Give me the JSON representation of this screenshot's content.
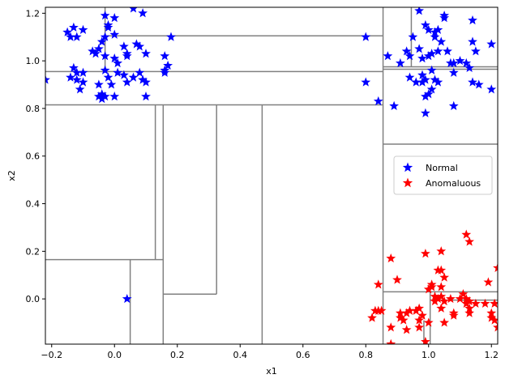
{
  "chart_data": {
    "type": "scatter",
    "title": "",
    "xlabel": "x1",
    "ylabel": "x2",
    "xlim": [
      -0.22,
      1.22
    ],
    "ylim": [
      -0.19,
      1.225
    ],
    "xticks": [
      -0.2,
      0.0,
      0.2,
      0.4,
      0.6,
      0.8,
      1.0,
      1.2
    ],
    "xtick_labels": [
      "−0.2",
      "0.0",
      "0.2",
      "0.4",
      "0.6",
      "0.8",
      "1.0",
      "1.2"
    ],
    "yticks": [
      0.0,
      0.2,
      0.4,
      0.6,
      0.8,
      1.0,
      1.2
    ],
    "ytick_labels": [
      "0.0",
      "0.2",
      "0.4",
      "0.6",
      "0.8",
      "1.0",
      "1.2"
    ],
    "grid": false,
    "legend_position": "center-right",
    "partition_color": "#808080",
    "partition_lines": {
      "vertical": [
        {
          "x": -0.03,
          "y0": 0.95,
          "y1": 1.225
        },
        {
          "x": 0.13,
          "y0": 0.165,
          "y1": 0.815
        },
        {
          "x": 0.155,
          "y0": -0.19,
          "y1": 0.815
        },
        {
          "x": 0.05,
          "y0": -0.19,
          "y1": 0.165
        },
        {
          "x": 0.325,
          "y0": 0.02,
          "y1": 0.815
        },
        {
          "x": 0.47,
          "y0": -0.19,
          "y1": 0.815
        },
        {
          "x": 0.855,
          "y0": -0.19,
          "y1": 1.225
        },
        {
          "x": 0.945,
          "y0": 0.975,
          "y1": 1.225
        },
        {
          "x": 1.005,
          "y0": -0.19,
          "y1": 0.03
        },
        {
          "x": 0.985,
          "y0": -0.19,
          "y1": -0.09
        }
      ],
      "horizontal": [
        {
          "y": 1.105,
          "x0": -0.03,
          "x1": 0.855
        },
        {
          "y": 0.955,
          "x0": -0.22,
          "x1": 0.855
        },
        {
          "y": 0.815,
          "x0": -0.22,
          "x1": 0.855
        },
        {
          "y": 0.165,
          "x0": -0.22,
          "x1": 0.155
        },
        {
          "y": 0.02,
          "x0": 0.155,
          "x1": 0.325
        },
        {
          "y": 0.975,
          "x0": 0.855,
          "x1": 1.22
        },
        {
          "y": 0.965,
          "x0": 0.855,
          "x1": 1.22
        },
        {
          "y": 0.65,
          "x0": 0.855,
          "x1": 1.22
        },
        {
          "y": 0.03,
          "x0": 0.855,
          "x1": 1.22
        },
        {
          "y": -0.005,
          "x0": 1.005,
          "x1": 1.22
        }
      ]
    },
    "series": [
      {
        "name": "Normal",
        "color": "#0000ff",
        "marker": "star",
        "points": [
          [
            -0.22,
            0.92
          ],
          [
            -0.15,
            1.12
          ],
          [
            -0.13,
            1.14
          ],
          [
            -0.12,
            1.1
          ],
          [
            -0.14,
            1.1
          ],
          [
            -0.1,
            1.13
          ],
          [
            -0.03,
            1.19
          ],
          [
            -0.02,
            1.15
          ],
          [
            -0.02,
            1.14
          ],
          [
            0.0,
            1.18
          ],
          [
            0.06,
            1.22
          ],
          [
            0.09,
            1.2
          ],
          [
            -0.03,
            1.1
          ],
          [
            0.0,
            1.11
          ],
          [
            0.07,
            1.07
          ],
          [
            0.08,
            1.06
          ],
          [
            0.1,
            1.03
          ],
          [
            0.18,
            1.1
          ],
          [
            0.03,
            1.06
          ],
          [
            0.04,
            1.03
          ],
          [
            -0.07,
            1.04
          ],
          [
            -0.05,
            1.05
          ],
          [
            -0.06,
            1.03
          ],
          [
            -0.03,
            1.02
          ],
          [
            -0.04,
            1.08
          ],
          [
            0.0,
            1.01
          ],
          [
            0.01,
            0.99
          ],
          [
            0.04,
            1.02
          ],
          [
            0.16,
            1.02
          ],
          [
            0.17,
            0.98
          ],
          [
            0.16,
            0.95
          ],
          [
            0.16,
            0.96
          ],
          [
            -0.13,
            0.97
          ],
          [
            -0.12,
            0.95
          ],
          [
            -0.14,
            0.93
          ],
          [
            -0.12,
            0.92
          ],
          [
            -0.1,
            0.95
          ],
          [
            -0.1,
            0.91
          ],
          [
            -0.11,
            0.88
          ],
          [
            -0.05,
            0.9
          ],
          [
            -0.03,
            0.96
          ],
          [
            -0.02,
            0.93
          ],
          [
            -0.01,
            0.9
          ],
          [
            0.01,
            0.95
          ],
          [
            0.03,
            0.94
          ],
          [
            0.06,
            0.93
          ],
          [
            0.08,
            0.95
          ],
          [
            0.09,
            0.92
          ],
          [
            0.1,
            0.91
          ],
          [
            0.04,
            0.91
          ],
          [
            -0.05,
            0.85
          ],
          [
            -0.04,
            0.84
          ],
          [
            -0.04,
            0.86
          ],
          [
            -0.03,
            0.85
          ],
          [
            0.0,
            0.85
          ],
          [
            0.1,
            0.85
          ],
          [
            0.04,
            0.0
          ],
          [
            0.8,
            1.1
          ],
          [
            0.8,
            0.91
          ],
          [
            0.84,
            0.83
          ],
          [
            0.87,
            1.02
          ],
          [
            0.89,
            0.81
          ],
          [
            0.91,
            0.99
          ],
          [
            0.93,
            1.04
          ],
          [
            0.94,
            1.02
          ],
          [
            0.95,
            1.1
          ],
          [
            0.97,
            1.05
          ],
          [
            0.98,
            1.01
          ],
          [
            0.98,
            0.94
          ],
          [
            0.99,
            0.92
          ],
          [
            0.94,
            0.93
          ],
          [
            0.96,
            0.91
          ],
          [
            0.98,
            0.91
          ],
          [
            0.97,
            1.21
          ],
          [
            0.99,
            1.15
          ],
          [
            1.0,
            1.13
          ],
          [
            1.02,
            1.12
          ],
          [
            1.02,
            1.1
          ],
          [
            1.03,
            1.13
          ],
          [
            1.04,
            1.08
          ],
          [
            1.05,
            1.19
          ],
          [
            1.05,
            1.18
          ],
          [
            1.06,
            1.04
          ],
          [
            1.03,
            1.04
          ],
          [
            1.01,
            1.03
          ],
          [
            1.0,
            1.02
          ],
          [
            1.01,
            0.96
          ],
          [
            1.02,
            0.92
          ],
          [
            1.03,
            0.91
          ],
          [
            1.0,
            0.86
          ],
          [
            0.99,
            0.85
          ],
          [
            1.01,
            0.88
          ],
          [
            0.99,
            0.78
          ],
          [
            1.07,
            0.99
          ],
          [
            1.08,
            0.99
          ],
          [
            1.08,
            0.95
          ],
          [
            1.1,
            1.0
          ],
          [
            1.12,
            0.99
          ],
          [
            1.13,
            0.97
          ],
          [
            1.14,
            1.17
          ],
          [
            1.14,
            1.08
          ],
          [
            1.15,
            1.04
          ],
          [
            1.14,
            0.91
          ],
          [
            1.16,
            0.9
          ],
          [
            1.2,
            1.07
          ],
          [
            1.2,
            0.88
          ],
          [
            1.08,
            0.81
          ]
        ]
      },
      {
        "name": "Anomaluous",
        "color": "#ff0000",
        "marker": "star",
        "points": [
          [
            0.84,
            0.06
          ],
          [
            0.83,
            -0.05
          ],
          [
            0.84,
            -0.05
          ],
          [
            0.82,
            -0.08
          ],
          [
            0.85,
            -0.05
          ],
          [
            0.88,
            0.17
          ],
          [
            0.9,
            0.08
          ],
          [
            0.88,
            -0.12
          ],
          [
            0.88,
            -0.19
          ],
          [
            0.91,
            -0.06
          ],
          [
            0.91,
            -0.08
          ],
          [
            0.92,
            -0.09
          ],
          [
            0.93,
            -0.06
          ],
          [
            0.94,
            -0.05
          ],
          [
            0.93,
            -0.13
          ],
          [
            0.96,
            -0.05
          ],
          [
            0.97,
            -0.04
          ],
          [
            0.97,
            -0.09
          ],
          [
            0.98,
            -0.07
          ],
          [
            0.97,
            -0.12
          ],
          [
            0.99,
            0.19
          ],
          [
            1.0,
            -0.1
          ],
          [
            0.99,
            -0.18
          ],
          [
            1.0,
            0.04
          ],
          [
            1.01,
            0.06
          ],
          [
            1.01,
            0.05
          ],
          [
            1.02,
            0.01
          ],
          [
            1.02,
            -0.01
          ],
          [
            1.03,
            0.12
          ],
          [
            1.04,
            0.2
          ],
          [
            1.04,
            0.12
          ],
          [
            1.04,
            0.05
          ],
          [
            1.04,
            0.01
          ],
          [
            1.05,
            -0.01
          ],
          [
            1.04,
            -0.04
          ],
          [
            1.05,
            -0.1
          ],
          [
            1.07,
            0.0
          ],
          [
            1.08,
            -0.06
          ],
          [
            1.08,
            -0.07
          ],
          [
            1.1,
            0.0
          ],
          [
            1.11,
            0.02
          ],
          [
            1.12,
            0.0
          ],
          [
            1.12,
            -0.02
          ],
          [
            1.12,
            0.27
          ],
          [
            1.13,
            0.24
          ],
          [
            1.13,
            -0.01
          ],
          [
            1.13,
            -0.04
          ],
          [
            1.13,
            -0.06
          ],
          [
            1.15,
            -0.02
          ],
          [
            1.18,
            -0.02
          ],
          [
            1.19,
            0.07
          ],
          [
            1.2,
            -0.06
          ],
          [
            1.2,
            -0.08
          ],
          [
            1.21,
            -0.09
          ],
          [
            1.22,
            0.13
          ],
          [
            1.21,
            -0.02
          ],
          [
            1.22,
            -0.12
          ],
          [
            1.03,
            0.0
          ],
          [
            1.05,
            0.09
          ]
        ]
      }
    ]
  }
}
